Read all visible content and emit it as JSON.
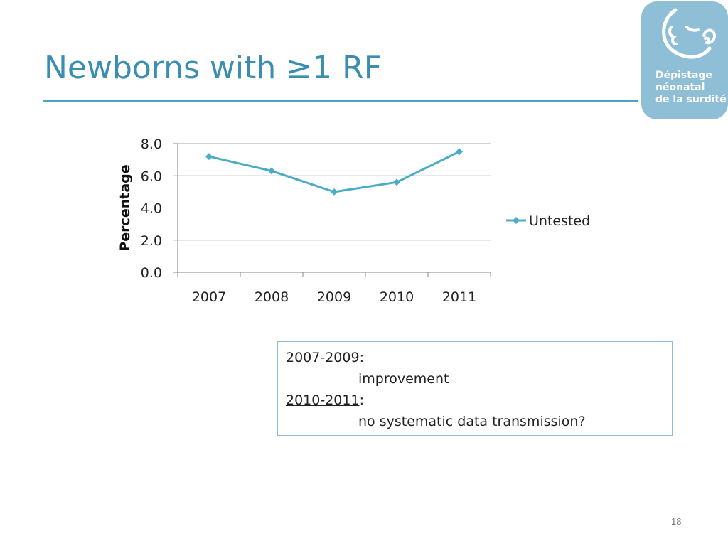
{
  "slide": {
    "title": "Newborns with ≥1 RF",
    "page_number": "18"
  },
  "logo": {
    "icon": "baby-ear-icon",
    "lines": [
      "Dépistage",
      "néonatal",
      "de la surdité"
    ]
  },
  "note": {
    "period1": "2007-2009:",
    "finding1": "improvement",
    "period2": "2010-2011",
    "period2_suffix": ":",
    "finding2": "no systematic data transmission?"
  },
  "chart_data": {
    "type": "line",
    "categories": [
      "2007",
      "2008",
      "2009",
      "2010",
      "2011"
    ],
    "series": [
      {
        "name": "Untested",
        "values": [
          7.2,
          6.3,
          5.0,
          5.6,
          7.5
        ],
        "color": "#4bacc6"
      }
    ],
    "xlabel": "",
    "ylabel": "Percentage",
    "ylim": [
      0,
      8
    ],
    "yticks": [
      "0.0",
      "2.0",
      "4.0",
      "6.0",
      "8.0"
    ],
    "grid": true,
    "legend_position": "right",
    "marker": "diamond"
  }
}
